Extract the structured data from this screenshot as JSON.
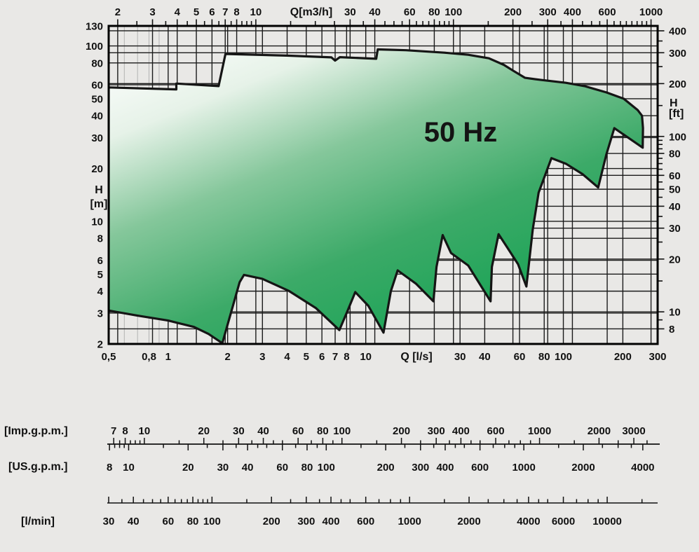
{
  "title": "50 Hz",
  "colors": {
    "background": "#e9e8e6",
    "grid": "#1b1b1b",
    "grid_minor": "#b3b3b3",
    "border": "#000000",
    "envelope_stroke": "#151515",
    "envelope_gradient": [
      "#ffffff",
      "#e6f2e8",
      "#85c79b",
      "#3caa68",
      "#12a251"
    ],
    "text": "#111111"
  },
  "chart_data": {
    "type": "area",
    "title": "50 Hz",
    "description": "Pump family coverage envelope, flow Q vs head H, log-log scales",
    "x_range_ls": [
      0.5,
      300
    ],
    "y_range_m": [
      2,
      130
    ],
    "axes": {
      "top": {
        "label": "Q[m3/h]",
        "ls_per_unit": 0.277778,
        "labels": [
          "2",
          "3",
          "4",
          "5",
          "6",
          "7",
          "8",
          "10",
          "30",
          "40",
          "60",
          "80",
          "100",
          "200",
          "300",
          "400",
          "600",
          "1000"
        ],
        "values": [
          2,
          3,
          4,
          5,
          6,
          7,
          8,
          10,
          30,
          40,
          60,
          80,
          100,
          200,
          300,
          400,
          600,
          1000
        ],
        "minor_ticks": [
          2,
          2.5,
          3,
          3.5,
          4,
          4.5,
          5,
          5.5,
          6,
          6.5,
          7,
          7.5,
          8,
          8.5,
          9,
          9.5,
          10,
          15,
          20,
          25,
          30,
          35,
          40,
          45,
          50,
          55,
          60,
          65,
          70,
          75,
          80,
          85,
          90,
          95,
          100,
          150,
          200,
          250,
          300,
          350,
          400,
          450,
          500,
          550,
          600,
          650,
          700,
          750,
          800,
          850,
          900,
          950,
          1000
        ]
      },
      "bottom": {
        "label": "Q [l/s]",
        "labels": [
          "0,5",
          "0,8",
          "1",
          "2",
          "3",
          "4",
          "5",
          "6",
          "7",
          "8",
          "10",
          "30",
          "40",
          "60",
          "80",
          "100",
          "200",
          "300"
        ],
        "values": [
          0.5,
          0.8,
          1,
          2,
          3,
          4,
          5,
          6,
          7,
          8,
          10,
          30,
          40,
          60,
          80,
          100,
          200,
          300
        ]
      },
      "left": {
        "label_lines": [
          "H",
          "[m]"
        ],
        "labels": [
          "130",
          "100",
          "80",
          "60",
          "50",
          "40",
          "30",
          "20",
          "10",
          "8",
          "6",
          "5",
          "4",
          "3",
          "2"
        ],
        "values": [
          130,
          100,
          80,
          60,
          50,
          40,
          30,
          20,
          10,
          8,
          6,
          5,
          4,
          3,
          2
        ]
      },
      "right": {
        "label_lines": [
          "H",
          "[ft]"
        ],
        "m_per_unit": 0.3048,
        "labels": [
          "400",
          "300",
          "200",
          "100",
          "80",
          "60",
          "50",
          "40",
          "30",
          "20",
          "10",
          "8"
        ],
        "values": [
          400,
          300,
          200,
          100,
          80,
          60,
          50,
          40,
          30,
          20,
          10,
          8
        ],
        "minor_ticks": [
          8,
          9,
          10,
          15,
          20,
          25,
          30,
          35,
          40,
          45,
          50,
          55,
          60,
          65,
          70,
          75,
          80,
          85,
          90,
          95,
          100,
          150,
          200,
          250,
          300,
          350,
          400
        ]
      }
    },
    "gridlines": {
      "h_m": [
        3,
        4,
        5,
        6,
        8,
        10,
        20,
        30,
        40,
        50,
        60,
        80,
        100
      ],
      "h_ft": [
        8,
        10,
        20,
        30,
        40,
        50,
        60,
        80,
        100,
        200,
        300,
        400
      ],
      "v_ls": [
        1,
        2,
        3,
        4,
        5,
        6,
        7,
        8,
        10,
        30,
        40,
        60,
        80,
        100,
        200
      ],
      "v_ls_minor": [
        0.6,
        0.7,
        0.8,
        0.9
      ],
      "v_m3h": [
        2,
        3,
        4,
        5,
        6,
        7,
        8,
        10,
        30,
        40,
        60,
        80,
        100,
        200,
        300,
        400,
        600,
        1000
      ]
    },
    "envelope_ls_m": [
      [
        0.5,
        3.1
      ],
      [
        0.5,
        58
      ],
      [
        1.1,
        56.5
      ],
      [
        1.1,
        61
      ],
      [
        1.8,
        59
      ],
      [
        1.95,
        90
      ],
      [
        4.0,
        88
      ],
      [
        6.7,
        86
      ],
      [
        7.0,
        82.5
      ],
      [
        7.4,
        86.3
      ],
      [
        11.3,
        84.5
      ],
      [
        11.5,
        95.5
      ],
      [
        16,
        94.5
      ],
      [
        25,
        91.5
      ],
      [
        33,
        89
      ],
      [
        42,
        85
      ],
      [
        50,
        78
      ],
      [
        56,
        72
      ],
      [
        64,
        65.8
      ],
      [
        77,
        64
      ],
      [
        103,
        61.6
      ],
      [
        128,
        59
      ],
      [
        165,
        54.3
      ],
      [
        202,
        50
      ],
      [
        238,
        43
      ],
      [
        250,
        40
      ],
      [
        253,
        34
      ],
      [
        252,
        26.3
      ],
      [
        181,
        34
      ],
      [
        165,
        24
      ],
      [
        150,
        15.6
      ],
      [
        125,
        18.6
      ],
      [
        103,
        21.3
      ],
      [
        87,
        22.9
      ],
      [
        75,
        14.6
      ],
      [
        70,
        9
      ],
      [
        65,
        4.25
      ],
      [
        59,
        5.7
      ],
      [
        52,
        7.1
      ],
      [
        47,
        8.45
      ],
      [
        43.5,
        5.5
      ],
      [
        42.8,
        3.5
      ],
      [
        33,
        5.6
      ],
      [
        27,
        6.6
      ],
      [
        24.5,
        8.35
      ],
      [
        22.8,
        5.5
      ],
      [
        22,
        3.5
      ],
      [
        18,
        4.4
      ],
      [
        14.5,
        5.25
      ],
      [
        13.4,
        4.0
      ],
      [
        12.3,
        2.32
      ],
      [
        10.3,
        3.3
      ],
      [
        8.85,
        3.95
      ],
      [
        8.1,
        3.1
      ],
      [
        7.35,
        2.4
      ],
      [
        5.6,
        3.2
      ],
      [
        4.1,
        4.0
      ],
      [
        3.0,
        4.7
      ],
      [
        2.42,
        4.95
      ],
      [
        2.3,
        4.5
      ],
      [
        1.88,
        2.02
      ],
      [
        1.6,
        2.28
      ],
      [
        1.35,
        2.5
      ],
      [
        1.0,
        2.72
      ],
      [
        0.7,
        2.9
      ]
    ]
  },
  "rulers": {
    "imp": {
      "unit_label": "[Imp.g.p.m.]",
      "ls_per_unit": 0.0757682,
      "labels": [
        "7",
        "8",
        "10",
        "20",
        "30",
        "40",
        "60",
        "80",
        "100",
        "200",
        "300",
        "400",
        "600",
        "1000",
        "2000",
        "3000"
      ],
      "values": [
        7,
        8,
        10,
        20,
        30,
        40,
        60,
        80,
        100,
        200,
        300,
        400,
        600,
        1000,
        2000,
        3000
      ],
      "ticks": [
        7,
        7.5,
        8,
        8.5,
        9,
        9.5,
        10,
        15,
        20,
        25,
        30,
        35,
        40,
        45,
        50,
        60,
        70,
        80,
        90,
        100,
        150,
        200,
        250,
        300,
        350,
        400,
        450,
        500,
        600,
        700,
        800,
        900,
        1000,
        1500,
        2000,
        2500,
        3000,
        3500
      ]
    },
    "us": {
      "unit_label": "[US.g.p.m.]",
      "ls_per_unit": 0.0630902,
      "labels": [
        "8",
        "10",
        "20",
        "30",
        "40",
        "60",
        "80",
        "100",
        "200",
        "300",
        "400",
        "600",
        "1000",
        "2000",
        "4000"
      ],
      "values": [
        8,
        10,
        20,
        30,
        40,
        60,
        80,
        100,
        200,
        300,
        400,
        600,
        1000,
        2000,
        4000
      ],
      "ticks": [
        8,
        8.5,
        9,
        9.5,
        10,
        15,
        20,
        25,
        30,
        35,
        40,
        45,
        50,
        60,
        70,
        80,
        90,
        100,
        150,
        200,
        250,
        300,
        350,
        400,
        450,
        500,
        600,
        700,
        800,
        900,
        1000,
        1500,
        2000,
        2500,
        3000,
        3500,
        4000
      ]
    },
    "lmin": {
      "unit_label": "[l/min]",
      "ls_per_unit": 0.0166667,
      "labels": [
        "30",
        "40",
        "60",
        "80",
        "100",
        "200",
        "300",
        "400",
        "600",
        "1000",
        "2000",
        "4000",
        "6000",
        "10000"
      ],
      "values": [
        30,
        40,
        60,
        80,
        100,
        200,
        300,
        400,
        600,
        1000,
        2000,
        4000,
        6000,
        10000
      ],
      "ticks": [
        30,
        35,
        40,
        45,
        50,
        55,
        60,
        65,
        70,
        75,
        80,
        85,
        90,
        95,
        100,
        150,
        200,
        250,
        300,
        350,
        400,
        450,
        500,
        600,
        700,
        800,
        900,
        1000,
        1500,
        2000,
        2500,
        3000,
        3500,
        4000,
        4500,
        5000,
        6000,
        7000,
        8000,
        9000,
        10000,
        15000
      ]
    }
  }
}
